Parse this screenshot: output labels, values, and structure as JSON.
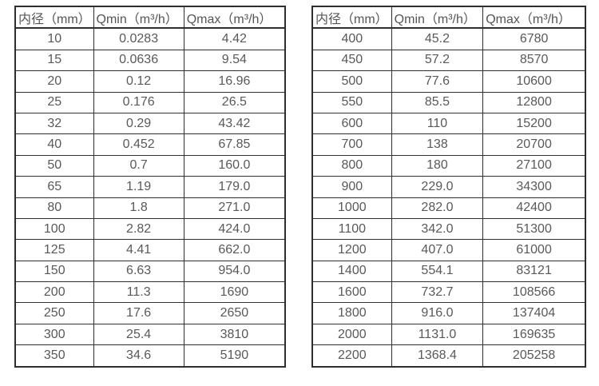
{
  "colors": {
    "background": "#ffffff",
    "border": "#2e2e2e",
    "text": "#595959"
  },
  "chart_data": [
    {
      "type": "table",
      "name": "flow-rate-table-small-diameters",
      "columns": [
        "内径（mm）",
        "Qmin（m³/h）",
        "Qmax（m³/h）"
      ],
      "rows": [
        [
          "10",
          "0.0283",
          "4.42"
        ],
        [
          "15",
          "0.0636",
          "9.54"
        ],
        [
          "20",
          "0.12",
          "16.96"
        ],
        [
          "25",
          "0.176",
          "26.5"
        ],
        [
          "32",
          "0.29",
          "43.42"
        ],
        [
          "40",
          "0.452",
          "67.85"
        ],
        [
          "50",
          "0.7",
          "160.0"
        ],
        [
          "65",
          "1.19",
          "179.0"
        ],
        [
          "80",
          "1.8",
          "271.0"
        ],
        [
          "100",
          "2.82",
          "424.0"
        ],
        [
          "125",
          "4.41",
          "662.0"
        ],
        [
          "150",
          "6.63",
          "954.0"
        ],
        [
          "200",
          "11.3",
          "1690"
        ],
        [
          "250",
          "17.6",
          "2650"
        ],
        [
          "300",
          "25.4",
          "3810"
        ],
        [
          "350",
          "34.6",
          "5190"
        ]
      ]
    },
    {
      "type": "table",
      "name": "flow-rate-table-large-diameters",
      "columns": [
        "内径（mm）",
        "Qmin（m³/h）",
        "Qmax（m³/h）"
      ],
      "rows": [
        [
          "400",
          "45.2",
          "6780"
        ],
        [
          "450",
          "57.2",
          "8570"
        ],
        [
          "500",
          "77.6",
          "10600"
        ],
        [
          "550",
          "85.5",
          "12800"
        ],
        [
          "600",
          "110",
          "15200"
        ],
        [
          "700",
          "138",
          "20700"
        ],
        [
          "800",
          "180",
          "27100"
        ],
        [
          "900",
          "229.0",
          "34300"
        ],
        [
          "1000",
          "282.0",
          "42400"
        ],
        [
          "1100",
          "342.0",
          "51300"
        ],
        [
          "1200",
          "407.0",
          "61000"
        ],
        [
          "1400",
          "554.1",
          "83121"
        ],
        [
          "1600",
          "732.7",
          "108566"
        ],
        [
          "1800",
          "916.0",
          "137404"
        ],
        [
          "2000",
          "1131.0",
          "169635"
        ],
        [
          "2200",
          "1368.4",
          "205258"
        ]
      ]
    }
  ]
}
